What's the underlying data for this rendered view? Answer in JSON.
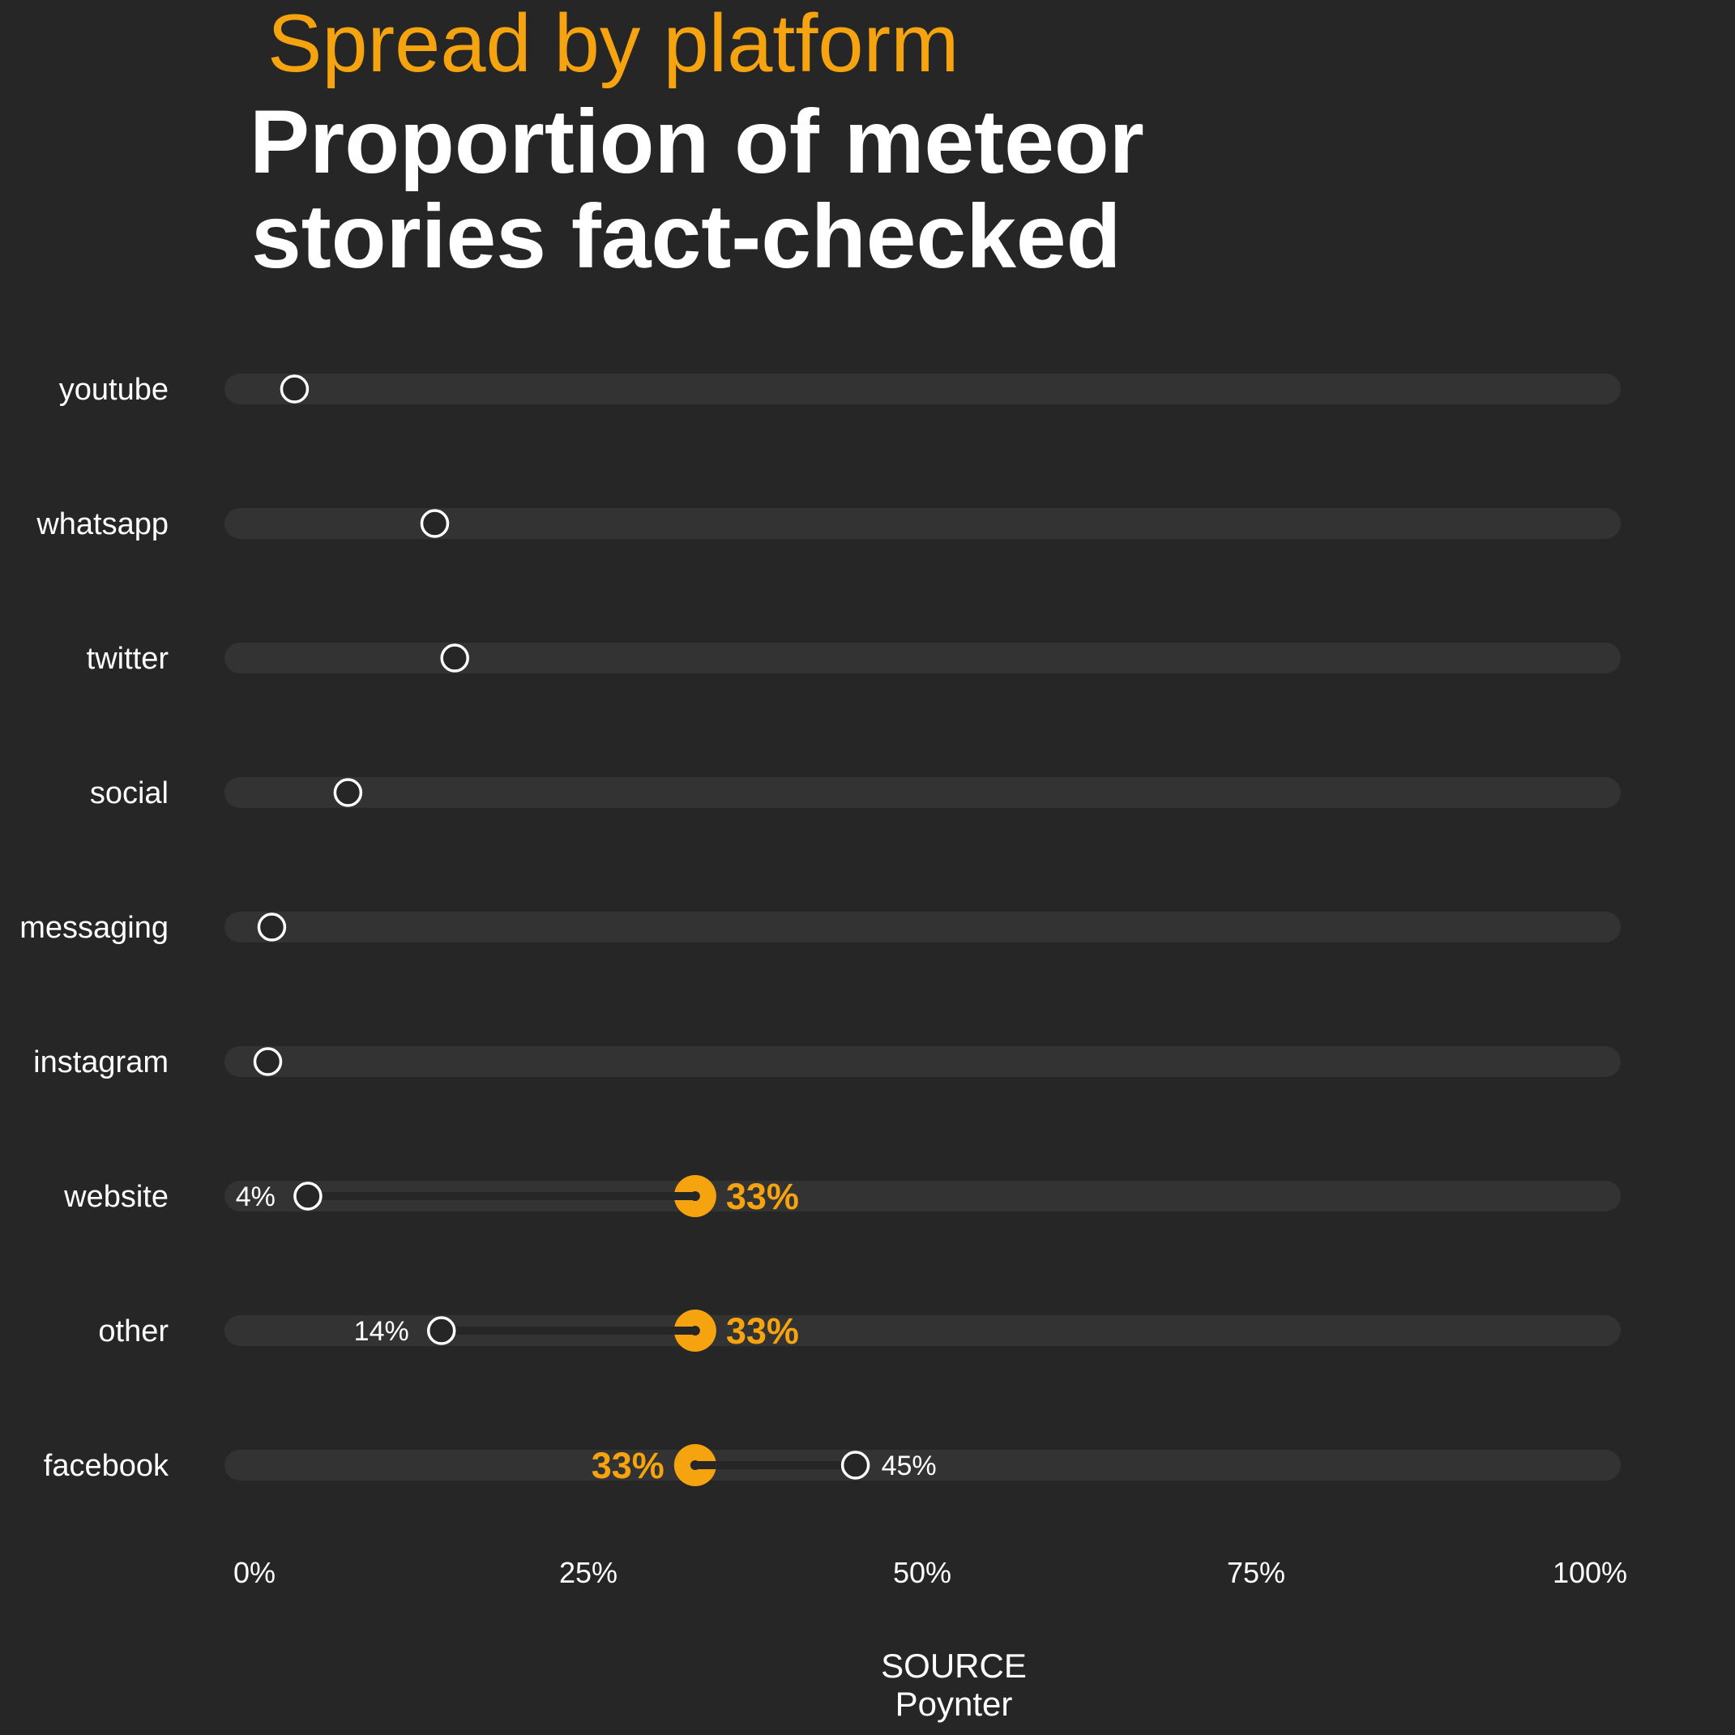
{
  "chart_data": {
    "type": "dot-range",
    "subtitle": "Spread by platform",
    "title_lines": [
      "Proportion of meteor",
      "stories fact-checked"
    ],
    "xlim": [
      0,
      100
    ],
    "ticks": [
      0,
      25,
      50,
      75,
      100
    ],
    "tick_labels": [
      "0%",
      "25%",
      "50%",
      "75%",
      "100%"
    ],
    "grid": false,
    "reference_value": 33,
    "reference_label": "33%",
    "reference_color": "#f5a30f",
    "track_color": "#333333",
    "categories": [
      "youtube",
      "whatsapp",
      "twitter",
      "social",
      "messaging",
      "instagram",
      "website",
      "other",
      "facebook"
    ],
    "values": [
      3,
      13.5,
      15,
      7,
      1.3,
      1,
      4,
      14,
      45
    ],
    "value_labels": [
      "",
      "",
      "",
      "",
      "",
      "",
      "4%",
      "14%",
      "45%"
    ],
    "highlighted": [
      false,
      false,
      false,
      false,
      false,
      false,
      true,
      true,
      true
    ],
    "source_heading": "SOURCE",
    "source_name": "Poynter"
  }
}
